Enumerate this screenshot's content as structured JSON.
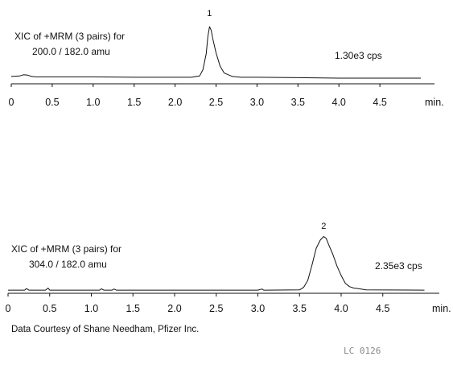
{
  "chart_data": [
    {
      "type": "line",
      "title_line1": "XIC of +MRM (3 pairs) for",
      "title_line2": "200.0 / 182.0 amu",
      "intensity_label": "1.30e3 cps",
      "xlabel": "min.",
      "x_ticks": [
        "0",
        "0.5",
        "1.0",
        "1.5",
        "2.0",
        "2.5",
        "3.0",
        "3.5",
        "4.0",
        "4.5"
      ],
      "xlim": [
        0,
        5.0
      ],
      "ylim": [
        0,
        1.3
      ],
      "grid": false,
      "peaks": [
        {
          "label": "1",
          "x": 2.42
        }
      ],
      "series": [
        {
          "x": [
            0,
            0.1,
            0.15,
            0.2,
            0.25,
            0.3,
            0.5,
            1.0,
            1.5,
            2.0,
            2.2,
            2.3,
            2.34,
            2.38,
            2.4,
            2.42,
            2.44,
            2.46,
            2.5,
            2.55,
            2.6,
            2.7,
            2.8,
            3.0,
            3.5,
            4.0,
            4.5,
            5.0
          ],
          "y": [
            0.06,
            0.07,
            0.1,
            0.09,
            0.06,
            0.05,
            0.05,
            0.05,
            0.04,
            0.04,
            0.04,
            0.07,
            0.22,
            0.6,
            1.0,
            1.24,
            1.16,
            0.96,
            0.62,
            0.3,
            0.14,
            0.06,
            0.04,
            0.04,
            0.03,
            0.02,
            0.02,
            0.02
          ]
        }
      ]
    },
    {
      "type": "line",
      "title_line1": "XIC of +MRM (3 pairs) for",
      "title_line2": "304.0 / 182.0 amu",
      "intensity_label": "2.35e3 cps",
      "xlabel": "min.",
      "x_ticks": [
        "0",
        "0.5",
        "1.0",
        "1.5",
        "2.0",
        "2.5",
        "3.0",
        "3.5",
        "4.0",
        "4.5"
      ],
      "xlim": [
        0,
        5.0
      ],
      "ylim": [
        0,
        2.35
      ],
      "grid": false,
      "peaks": [
        {
          "label": "2",
          "x": 3.79
        }
      ],
      "series": [
        {
          "x": [
            0,
            0.2,
            0.22,
            0.25,
            0.45,
            0.48,
            0.5,
            1.0,
            1.1,
            1.12,
            1.15,
            1.25,
            1.27,
            1.3,
            2.0,
            3.0,
            3.05,
            3.07,
            3.1,
            3.5,
            3.55,
            3.6,
            3.65,
            3.7,
            3.75,
            3.79,
            3.82,
            3.85,
            3.9,
            3.95,
            4.0,
            4.05,
            4.1,
            4.15,
            4.2,
            4.3,
            5.0
          ],
          "y": [
            0.03,
            0.03,
            0.1,
            0.03,
            0.03,
            0.12,
            0.03,
            0.03,
            0.03,
            0.09,
            0.03,
            0.03,
            0.08,
            0.03,
            0.03,
            0.03,
            0.08,
            0.03,
            0.03,
            0.04,
            0.15,
            0.45,
            1.1,
            1.8,
            2.15,
            2.3,
            2.22,
            1.95,
            1.55,
            1.05,
            0.65,
            0.32,
            0.18,
            0.12,
            0.1,
            0.04,
            0.03
          ]
        }
      ]
    }
  ],
  "credit": "Data Courtesy of Shane Needham, Pfizer Inc.",
  "catalog_code": "LC 0126"
}
